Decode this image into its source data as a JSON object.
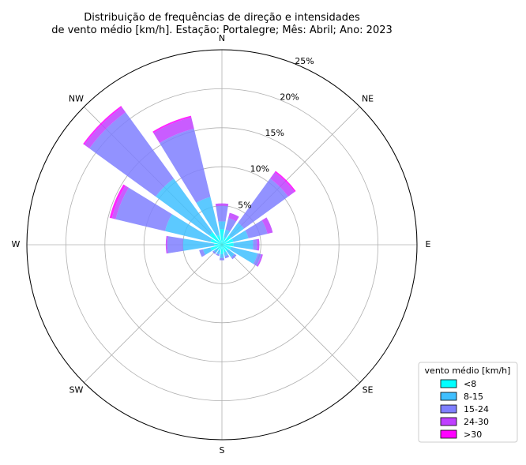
{
  "chart_data": {
    "type": "windrose",
    "title_lines": [
      "Distribuição de frequências de direção e intensidades",
      "de vento médio [km/h]. Estação: Portalegre; Mês: Abril; Ano: 2023"
    ],
    "directions": [
      "N",
      "NNE",
      "NE",
      "ENE",
      "E",
      "ESE",
      "SE",
      "SSE",
      "S",
      "SSW",
      "SW",
      "WSW",
      "W",
      "WNW",
      "NW",
      "NNW"
    ],
    "direction_labels": [
      "N",
      "NE",
      "E",
      "SE",
      "S",
      "SW",
      "W",
      "NW"
    ],
    "radial_ticks": [
      5,
      10,
      15,
      20,
      25
    ],
    "radial_tick_labels": [
      "5%",
      "10%",
      "15%",
      "20%",
      "25%"
    ],
    "rmax": 25,
    "grid": true,
    "legend": {
      "title": "vento médio [km/h]",
      "placement": "bottom-right",
      "labels": [
        "<8",
        "8-15",
        "15-24",
        "24-30",
        ">30"
      ]
    },
    "series": [
      {
        "name": "<8",
        "color": "#00ffff",
        "values": [
          2.0,
          1.0,
          1.5,
          1.5,
          1.5,
          1.2,
          1.0,
          1.0,
          1.2,
          0.8,
          0.8,
          1.5,
          1.0,
          1.5,
          2.0,
          1.3
        ]
      },
      {
        "name": "8-15",
        "color": "#40bfff",
        "values": [
          1.0,
          1.0,
          2.0,
          2.0,
          2.5,
          3.5,
          1.0,
          0.5,
          0.5,
          0.5,
          0.5,
          1.0,
          4.0,
          6.0,
          8.5,
          5.0
        ]
      },
      {
        "name": "15-24",
        "color": "#7f7fff",
        "values": [
          2.0,
          1.5,
          7.0,
          2.5,
          0.5,
          0.5,
          0.3,
          0.3,
          0.3,
          0.2,
          0.2,
          0.5,
          2.0,
          6.5,
          10.5,
          9.0
        ]
      },
      {
        "name": "24-30",
        "color": "#bf40ff",
        "values": [
          0.3,
          0.7,
          1.0,
          0.7,
          0.3,
          0.2,
          0.0,
          0.0,
          0.0,
          0.0,
          0.0,
          0.0,
          0.2,
          0.5,
          0.8,
          1.5
        ]
      },
      {
        "name": ">30",
        "color": "#ff00ff",
        "values": [
          0.0,
          0.0,
          0.2,
          0.0,
          0.0,
          0.0,
          0.0,
          0.0,
          0.0,
          0.0,
          0.0,
          0.0,
          0.0,
          0.3,
          0.2,
          0.2
        ]
      }
    ]
  }
}
